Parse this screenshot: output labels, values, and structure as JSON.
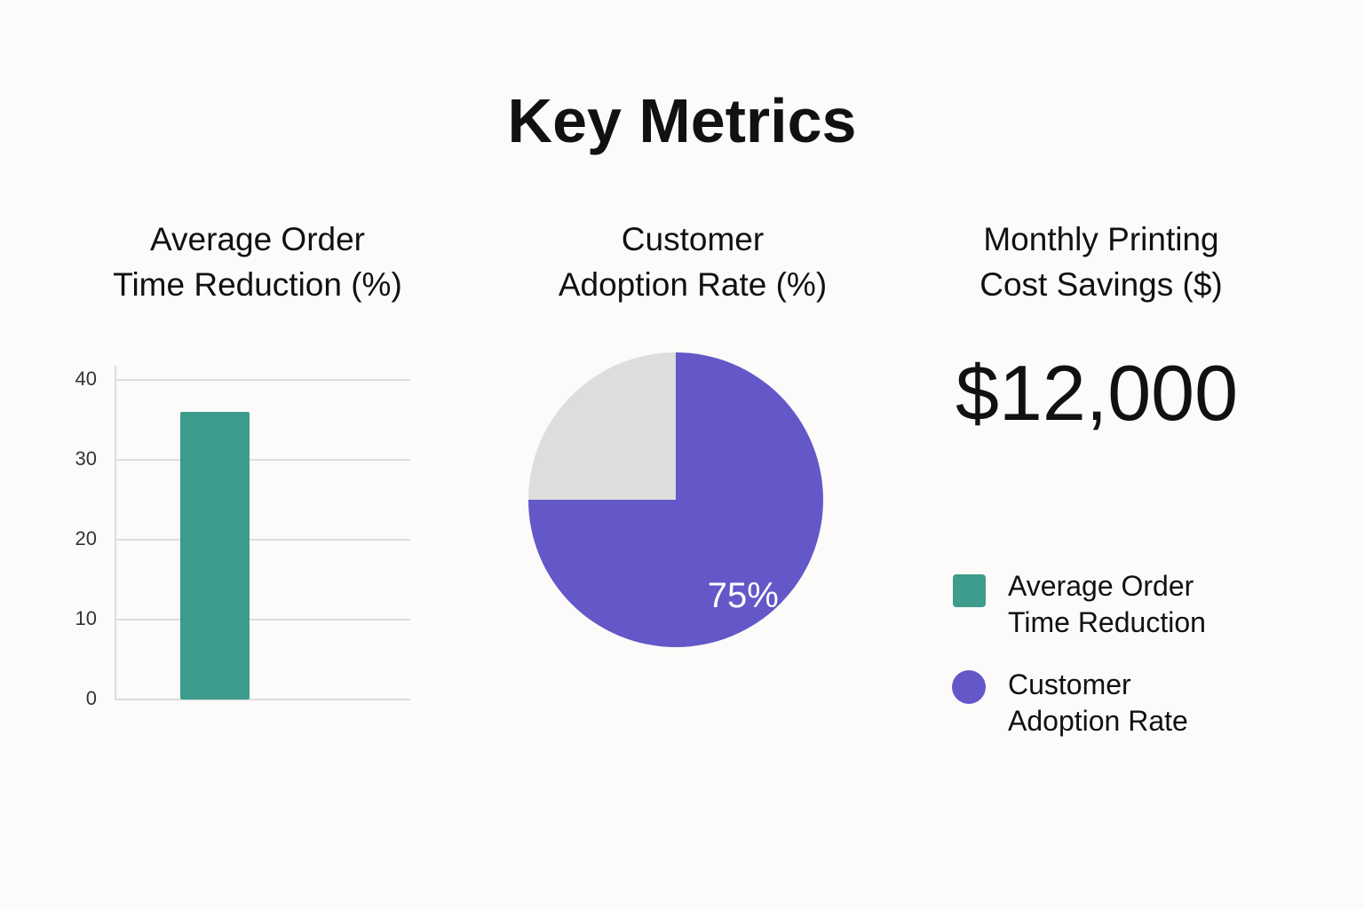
{
  "title": "Key Metrics",
  "chart_data": [
    {
      "type": "bar",
      "title": [
        "Average Order",
        "Time Reduction (%)"
      ],
      "categories": [
        null
      ],
      "values": [
        36
      ],
      "color": "#3d9c8c",
      "ylim": [
        0,
        40
      ],
      "yticks": [
        0,
        10,
        20,
        30,
        40
      ],
      "grid": true
    },
    {
      "type": "pie",
      "title": [
        "Customer",
        "Adoption Rate (%)"
      ],
      "values": [
        75,
        25
      ],
      "value_labels": [
        "75%",
        null
      ],
      "colors": [
        "#6457c8",
        "#dddddd"
      ]
    },
    {
      "type": "kpi",
      "title": [
        "Monthly Printing",
        "Cost Savings ($)"
      ],
      "value": 12000,
      "value_label": "$12,000"
    }
  ],
  "legend": [
    {
      "name": "Average Order Time Reduction",
      "color": "#3d9c8c",
      "marker": "square"
    },
    {
      "name": "Customer Adoption Rate",
      "color": "#6457c8",
      "marker": "circle"
    }
  ]
}
